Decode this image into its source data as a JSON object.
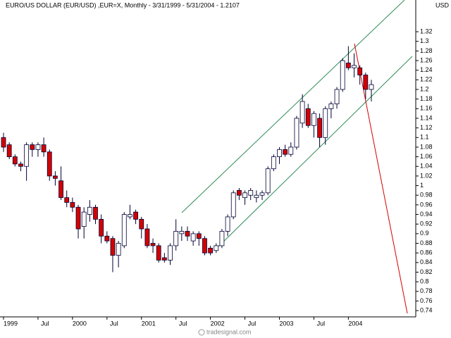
{
  "chart_data": {
    "type": "candlestick",
    "title": "EURO/US DOLLAR (EUR/USD) ,EUR=X, Monthly - 3/31/1999 - 5/31/2004 - 1.2107",
    "y_axis_label": "USD",
    "footer": "tradesignal.com",
    "categories": [
      "1999",
      null,
      null,
      null,
      null,
      null,
      "Jul",
      null,
      null,
      null,
      null,
      null,
      "2000",
      null,
      null,
      null,
      null,
      null,
      "Jul",
      null,
      null,
      null,
      null,
      null,
      "2001",
      null,
      null,
      null,
      null,
      null,
      "Jul",
      null,
      null,
      null,
      null,
      null,
      "2002",
      null,
      null,
      null,
      null,
      null,
      "Jul",
      null,
      null,
      null,
      null,
      null,
      "2003",
      null,
      null,
      null,
      null,
      null,
      "Jul",
      null,
      null,
      null,
      null,
      null,
      "2004",
      null,
      null,
      null,
      null
    ],
    "open": [
      1.1,
      1.085,
      1.06,
      1.045,
      1.04,
      1.085,
      1.075,
      1.085,
      1.07,
      1.02,
      1.01,
      0.975,
      0.965,
      0.955,
      0.915,
      0.94,
      0.955,
      0.93,
      0.895,
      0.89,
      0.855,
      0.875,
      0.935,
      0.945,
      0.93,
      0.91,
      0.88,
      0.875,
      0.85,
      0.845,
      0.875,
      0.9,
      0.905,
      0.885,
      0.9,
      0.89,
      0.87,
      0.865,
      0.875,
      0.905,
      0.935,
      0.99,
      0.975,
      0.98,
      0.975,
      0.98,
      0.985,
      1.035,
      1.06,
      1.075,
      1.065,
      1.08,
      1.13,
      1.16,
      1.125,
      1.14,
      1.1,
      1.16,
      1.17,
      1.2,
      1.255,
      1.245,
      1.245,
      1.23,
      1.2
    ],
    "high": [
      1.11,
      1.09,
      1.065,
      1.05,
      1.09,
      1.09,
      1.09,
      1.1,
      1.075,
      1.03,
      1.04,
      0.99,
      0.975,
      0.96,
      0.955,
      0.97,
      0.96,
      0.94,
      0.905,
      0.895,
      0.885,
      0.945,
      0.96,
      0.95,
      0.935,
      0.92,
      0.89,
      0.88,
      0.86,
      0.88,
      0.93,
      0.915,
      0.915,
      0.905,
      0.905,
      0.895,
      0.875,
      0.88,
      0.91,
      0.94,
      0.99,
      0.995,
      0.99,
      0.995,
      0.99,
      0.99,
      1.04,
      1.065,
      1.08,
      1.085,
      1.09,
      1.145,
      1.19,
      1.17,
      1.155,
      1.15,
      1.165,
      1.175,
      1.205,
      1.265,
      1.29,
      1.275,
      1.25,
      1.235,
      1.22
    ],
    "low": [
      1.07,
      1.055,
      1.04,
      1.03,
      1.01,
      1.06,
      1.06,
      1.06,
      1.01,
      1.0,
      0.97,
      0.955,
      0.945,
      0.89,
      0.89,
      0.925,
      0.92,
      0.88,
      0.88,
      0.82,
      0.83,
      0.87,
      0.93,
      0.92,
      0.89,
      0.87,
      0.86,
      0.84,
      0.84,
      0.835,
      0.865,
      0.885,
      0.885,
      0.875,
      0.875,
      0.855,
      0.855,
      0.86,
      0.87,
      0.895,
      0.93,
      0.97,
      0.96,
      0.97,
      0.965,
      0.97,
      0.98,
      1.03,
      1.045,
      1.06,
      1.06,
      1.075,
      1.12,
      1.12,
      1.1,
      1.08,
      1.085,
      1.14,
      1.16,
      1.195,
      1.24,
      1.225,
      1.21,
      1.18,
      1.175
    ],
    "close": [
      1.08,
      1.06,
      1.045,
      1.04,
      1.085,
      1.075,
      1.085,
      1.07,
      1.02,
      1.015,
      0.975,
      0.965,
      0.955,
      0.91,
      0.945,
      0.955,
      0.93,
      0.895,
      0.885,
      0.855,
      0.88,
      0.94,
      0.94,
      0.93,
      0.91,
      0.875,
      0.875,
      0.845,
      0.845,
      0.875,
      0.905,
      0.905,
      0.895,
      0.9,
      0.89,
      0.86,
      0.86,
      0.875,
      0.905,
      0.935,
      0.985,
      0.98,
      0.985,
      0.99,
      0.98,
      0.985,
      1.035,
      1.06,
      1.075,
      1.065,
      1.08,
      1.14,
      1.175,
      1.125,
      1.15,
      1.1,
      1.16,
      1.17,
      1.2,
      1.26,
      1.245,
      1.25,
      1.23,
      1.2,
      1.21
    ],
    "up_color": "#ffffff",
    "down_color": "#d40000",
    "wick_color": "#000033",
    "ylim": [
      0.727,
      1.386
    ],
    "yticks": [
      0.74,
      0.76,
      0.78,
      0.8,
      0.82,
      0.84,
      0.86,
      0.88,
      0.9,
      0.92,
      0.94,
      0.96,
      0.98,
      1,
      1.02,
      1.04,
      1.06,
      1.08,
      1.1,
      1.12,
      1.14,
      1.16,
      1.18,
      1.2,
      1.22,
      1.24,
      1.26,
      1.28,
      1.3,
      1.32
    ],
    "grid": false
  }
}
